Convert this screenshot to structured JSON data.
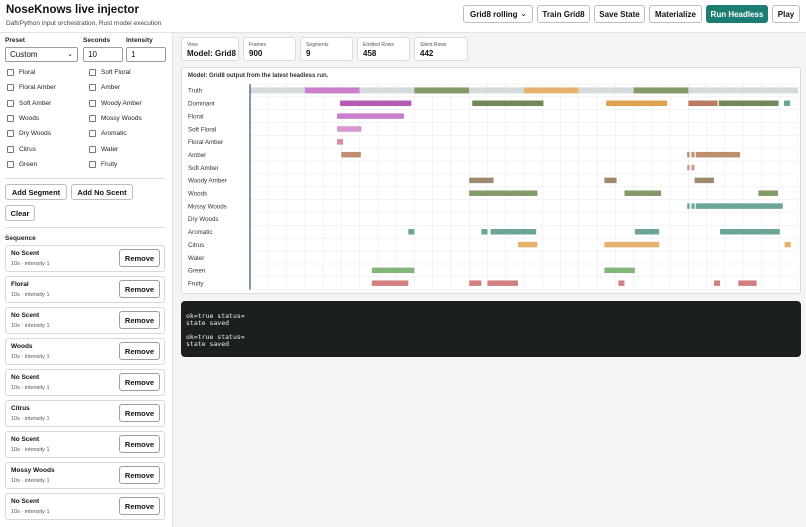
{
  "header": {
    "title": "NoseKnows live injector",
    "subtitle": "Daft/Python input orchestration, Rust model execution",
    "model_select": "Grid8 rolling",
    "buttons": {
      "train": "Train Grid8",
      "save": "Save State",
      "materialize": "Materialize",
      "run": "Run Headless",
      "play": "Play"
    }
  },
  "sidebar": {
    "preset_label": "Preset",
    "preset_value": "Custom",
    "seconds_label": "Seconds",
    "seconds_value": "10",
    "intensity_label": "Intensity",
    "intensity_value": "1",
    "scents": [
      "Floral",
      "Soft Floral",
      "Floral Amber",
      "Amber",
      "Soft Amber",
      "Woody Amber",
      "Woods",
      "Mossy Woods",
      "Dry Woods",
      "Aromatic",
      "Citrus",
      "Water",
      "Green",
      "Fruity"
    ],
    "add_segment": "Add Segment",
    "add_no_scent": "Add No Scent",
    "clear": "Clear",
    "sequence_label": "Sequence",
    "remove_label": "Remove",
    "sequence": [
      {
        "name": "No Scent",
        "meta": "10s · intensity 1"
      },
      {
        "name": "Floral",
        "meta": "10s · intensity 1"
      },
      {
        "name": "No Scent",
        "meta": "10s · intensity 1"
      },
      {
        "name": "Woods",
        "meta": "10s · intensity 1"
      },
      {
        "name": "No Scent",
        "meta": "10s · intensity 1"
      },
      {
        "name": "Citrus",
        "meta": "10s · intensity 1"
      },
      {
        "name": "No Scent",
        "meta": "10s · intensity 1"
      },
      {
        "name": "Mossy Woods",
        "meta": "10s · intensity 1"
      },
      {
        "name": "No Scent",
        "meta": "10s · intensity 1"
      }
    ]
  },
  "stats": [
    {
      "label": "View",
      "value": "Model: Grid8"
    },
    {
      "label": "Frames",
      "value": "900"
    },
    {
      "label": "Segments",
      "value": "9"
    },
    {
      "label": "Emitted Rows",
      "value": "458"
    },
    {
      "label": "Silent Rows",
      "value": "442"
    }
  ],
  "chart_caption": "Model: Grid8 output from the latest headless run.",
  "chart_data": {
    "type": "timeline",
    "x_range": [
      0,
      900
    ],
    "rows": [
      {
        "label": "Truth",
        "segments": [
          [
            0,
            90,
            "#d5dadb"
          ],
          [
            90,
            180,
            "#c97fc9"
          ],
          [
            180,
            270,
            "#d5dadb"
          ],
          [
            270,
            360,
            "#839a68"
          ],
          [
            360,
            450,
            "#d5dadb"
          ],
          [
            450,
            540,
            "#e5b36d"
          ],
          [
            540,
            630,
            "#d5dadb"
          ],
          [
            630,
            720,
            "#839a68"
          ],
          [
            720,
            900,
            "#d5dadb"
          ]
        ]
      },
      {
        "label": "Dominant",
        "segments": [
          [
            148,
            265,
            "#b45bb4"
          ],
          [
            365,
            482,
            "#6f8a56"
          ],
          [
            585,
            685,
            "#dca24e"
          ],
          [
            720,
            768,
            "#bd7a62"
          ],
          [
            770,
            868,
            "#6f8a56"
          ],
          [
            877,
            887,
            "#6ba595"
          ]
        ]
      },
      {
        "label": "Floral",
        "segments": [
          [
            143,
            253,
            "#c97fc9"
          ]
        ]
      },
      {
        "label": "Soft Floral",
        "segments": [
          [
            143,
            183,
            "#d797cd"
          ]
        ]
      },
      {
        "label": "Floral Amber",
        "segments": [
          [
            143,
            153,
            "#da88a6"
          ]
        ]
      },
      {
        "label": "Amber",
        "segments": [
          [
            150,
            182,
            "#bd8e6f"
          ],
          [
            718,
            722,
            "#bd8e6f"
          ],
          [
            725,
            730,
            "#bd8e6f"
          ],
          [
            732,
            805,
            "#bd8e6f"
          ]
        ]
      },
      {
        "label": "Soft Amber",
        "segments": [
          [
            718,
            722,
            "#c79c8c"
          ],
          [
            725,
            730,
            "#c79c8c"
          ]
        ]
      },
      {
        "label": "Woody Amber",
        "segments": [
          [
            360,
            400,
            "#9f8a6f"
          ],
          [
            582,
            602,
            "#9f8a6f"
          ],
          [
            730,
            762,
            "#9f8a6f"
          ]
        ]
      },
      {
        "label": "Woods",
        "segments": [
          [
            360,
            472,
            "#839a68"
          ],
          [
            615,
            675,
            "#839a68"
          ],
          [
            835,
            867,
            "#839a68"
          ]
        ]
      },
      {
        "label": "Mossy Woods",
        "segments": [
          [
            718,
            722,
            "#6ba595"
          ],
          [
            725,
            730,
            "#6ba595"
          ],
          [
            732,
            875,
            "#6ba595"
          ]
        ]
      },
      {
        "label": "Dry Woods",
        "segments": []
      },
      {
        "label": "Aromatic",
        "segments": [
          [
            260,
            270,
            "#6ba595"
          ],
          [
            380,
            390,
            "#6ba595"
          ],
          [
            395,
            470,
            "#6ba595"
          ],
          [
            632,
            672,
            "#6ba595"
          ],
          [
            772,
            870,
            "#6ba595"
          ]
        ]
      },
      {
        "label": "Citrus",
        "segments": [
          [
            440,
            472,
            "#e5b36d"
          ],
          [
            582,
            672,
            "#e5b36d"
          ],
          [
            878,
            888,
            "#e5b36d"
          ]
        ]
      },
      {
        "label": "Water",
        "segments": []
      },
      {
        "label": "Green",
        "segments": [
          [
            200,
            270,
            "#84b57a"
          ],
          [
            582,
            632,
            "#84b57a"
          ]
        ]
      },
      {
        "label": "Fruity",
        "segments": [
          [
            200,
            260,
            "#d2807f"
          ],
          [
            360,
            380,
            "#d2807f"
          ],
          [
            390,
            440,
            "#d2807f"
          ],
          [
            605,
            615,
            "#d2807f"
          ],
          [
            762,
            772,
            "#d2807f"
          ],
          [
            802,
            832,
            "#d2807f"
          ]
        ]
      }
    ],
    "playhead": 0,
    "playhead_color": "#4a6b91",
    "grid": true
  },
  "terminal_lines": [
    "ok=true status=",
    "state saved",
    "",
    "ok=true status=",
    "state saved"
  ]
}
